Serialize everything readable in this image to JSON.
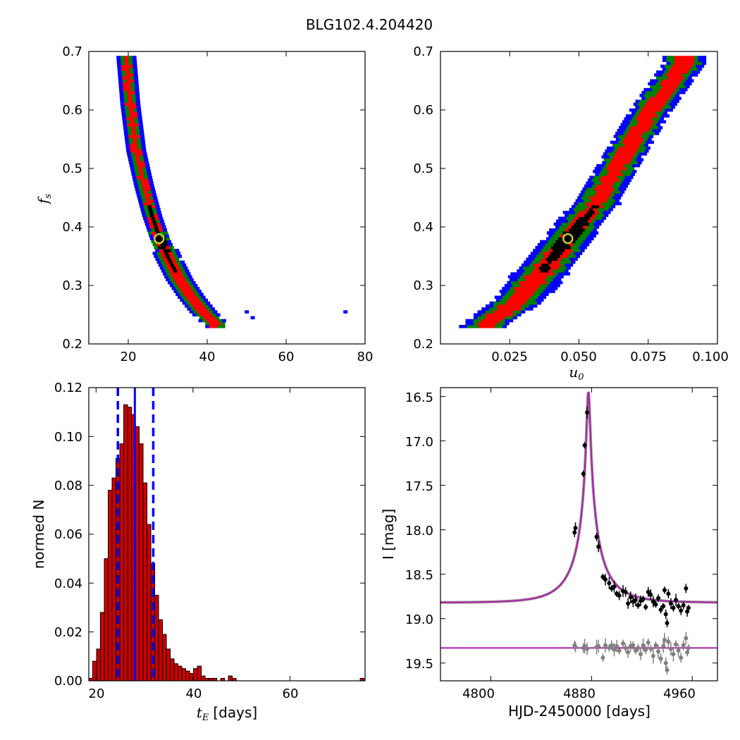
{
  "figure_title": "BLG102.4.204420",
  "colors": {
    "blue": "#0000ff",
    "green": "#008000",
    "red": "#ff0000",
    "black": "#000000",
    "marker": "#c8c832",
    "bar_fill": "#cc0000",
    "model": "#aa22aa",
    "resid": "#808080"
  },
  "chart_data": [
    {
      "id": "fs_vs_tE",
      "type": "heatmap",
      "title": "",
      "xlabel": "",
      "ylabel_main": "f",
      "ylabel_sub": "s",
      "xlim": [
        10,
        80
      ],
      "ylim": [
        0.2,
        0.7
      ],
      "xticks": [
        "20",
        "40",
        "60",
        "80"
      ],
      "yticks": [
        "0.2",
        "0.3",
        "0.4",
        "0.5",
        "0.6",
        "0.7"
      ],
      "levels": [
        "blue",
        "green",
        "red",
        "black"
      ],
      "ridge": {
        "x": [
          19.5,
          20.5,
          22,
          24,
          26,
          28,
          30,
          33,
          36,
          39,
          42
        ],
        "y": [
          0.69,
          0.61,
          0.53,
          0.47,
          0.42,
          0.38,
          0.35,
          0.31,
          0.28,
          0.255,
          0.235
        ]
      },
      "outliers": [
        {
          "x": 50,
          "y": 0.255
        },
        {
          "x": 51.5,
          "y": 0.245
        },
        {
          "x": 75,
          "y": 0.255
        }
      ],
      "best_fit": {
        "x": 27.8,
        "y": 0.38
      }
    },
    {
      "id": "fs_vs_u0",
      "type": "heatmap",
      "title": "",
      "xlabel_main": "u",
      "xlabel_sub": "0",
      "ylabel": "",
      "xlim": [
        0.0,
        0.1
      ],
      "ylim": [
        0.2,
        0.7
      ],
      "xticks": [
        "0.025",
        "0.050",
        "0.075",
        "0.100"
      ],
      "yticks": [
        "0.2",
        "0.3",
        "0.4",
        "0.5",
        "0.6",
        "0.7"
      ],
      "levels": [
        "blue",
        "green",
        "red",
        "black"
      ],
      "ridge": {
        "x": [
          0.016,
          0.027,
          0.036,
          0.046,
          0.056,
          0.066,
          0.076,
          0.088
        ],
        "y": [
          0.232,
          0.27,
          0.32,
          0.38,
          0.44,
          0.52,
          0.6,
          0.68
        ]
      },
      "best_fit": {
        "x": 0.046,
        "y": 0.38
      }
    },
    {
      "id": "tE_histogram",
      "type": "bar",
      "title": "",
      "xlabel_main": "t",
      "xlabel_sub": "E",
      "xlabel_unit": "[days]",
      "ylabel": "normed N",
      "xlim": [
        18.5,
        75.5
      ],
      "ylim": [
        0.0,
        0.12
      ],
      "xticks": [
        "20",
        "40",
        "60"
      ],
      "yticks": [
        "0.00",
        "0.02",
        "0.04",
        "0.06",
        "0.08",
        "0.10",
        "0.12"
      ],
      "bin_start": 18.5,
      "bin_width": 0.8,
      "values": [
        0.001,
        0.008,
        0.013,
        0.028,
        0.05,
        0.078,
        0.083,
        0.091,
        0.097,
        0.113,
        0.112,
        0.109,
        0.104,
        0.097,
        0.081,
        0.064,
        0.048,
        0.035,
        0.025,
        0.019,
        0.013,
        0.009,
        0.007,
        0.006,
        0.005,
        0.004,
        0.003,
        0.005,
        0.006,
        0.002,
        0.001,
        0.001,
        0.001,
        0.0,
        0.001,
        0.0,
        0.002,
        0.001,
        0.0,
        0.0,
        0.0,
        0.0,
        0.0,
        0.0,
        0.0,
        0.0,
        0.0,
        0.0,
        0.0,
        0.0,
        0.0,
        0.0,
        0.0,
        0.0,
        0.0,
        0.0,
        0.0,
        0.0,
        0.0,
        0.0,
        0.0,
        0.0,
        0.0,
        0.0,
        0.0,
        0.0,
        0.0,
        0.0,
        0.0,
        0.0,
        0.001
      ],
      "median_line": 28.0,
      "interval_lines": [
        24.5,
        31.8
      ]
    },
    {
      "id": "light_curve",
      "type": "scatter",
      "title": "",
      "xlabel": "HJD-2450000 [days]",
      "ylabel": "I [mag]",
      "xlim": [
        4760,
        4980
      ],
      "ylim": [
        19.7,
        16.4
      ],
      "xticks": [
        "4800",
        "4880",
        "4960"
      ],
      "yticks": [
        "16.5",
        "17.0",
        "17.5",
        "18.0",
        "18.5",
        "19.0",
        "19.5"
      ],
      "model": {
        "t0": 4877.5,
        "u0": 0.046,
        "tE": 27.8,
        "fs": 0.38,
        "baseline": 18.82
      },
      "residual_baseline": 19.33,
      "data_points": [
        {
          "x": 4873.5,
          "y": 17.37
        },
        {
          "x": 4874.5,
          "y": 17.05
        },
        {
          "x": 4876.5,
          "y": 16.68
        },
        {
          "x": 4866.5,
          "y": 18.03
        },
        {
          "x": 4867.2,
          "y": 17.98
        },
        {
          "x": 4884.0,
          "y": 18.08
        },
        {
          "x": 4885.5,
          "y": 18.19
        },
        {
          "x": 4889.0,
          "y": 18.53
        },
        {
          "x": 4891.0,
          "y": 18.56
        },
        {
          "x": 4894.0,
          "y": 18.6
        },
        {
          "x": 4896.0,
          "y": 18.66
        },
        {
          "x": 4898.0,
          "y": 18.64
        },
        {
          "x": 4900.0,
          "y": 18.72
        },
        {
          "x": 4902.0,
          "y": 18.74
        },
        {
          "x": 4905.0,
          "y": 18.69
        },
        {
          "x": 4907.0,
          "y": 18.7
        },
        {
          "x": 4909.0,
          "y": 18.83
        },
        {
          "x": 4911.0,
          "y": 18.76
        },
        {
          "x": 4913.0,
          "y": 18.81
        },
        {
          "x": 4915.0,
          "y": 18.79
        },
        {
          "x": 4917.0,
          "y": 18.85
        },
        {
          "x": 4919.0,
          "y": 18.8
        },
        {
          "x": 4921.0,
          "y": 18.78
        },
        {
          "x": 4923.0,
          "y": 18.87
        },
        {
          "x": 4925.0,
          "y": 18.7
        },
        {
          "x": 4927.0,
          "y": 18.73
        },
        {
          "x": 4929.0,
          "y": 18.81
        },
        {
          "x": 4931.0,
          "y": 18.84
        },
        {
          "x": 4933.0,
          "y": 18.77
        },
        {
          "x": 4935.0,
          "y": 18.9
        },
        {
          "x": 4937.0,
          "y": 18.86
        },
        {
          "x": 4938.0,
          "y": 18.68
        },
        {
          "x": 4939.0,
          "y": 18.95
        },
        {
          "x": 4940.0,
          "y": 19.05
        },
        {
          "x": 4941.0,
          "y": 18.72
        },
        {
          "x": 4943.0,
          "y": 18.83
        },
        {
          "x": 4945.0,
          "y": 18.88
        },
        {
          "x": 4947.0,
          "y": 18.79
        },
        {
          "x": 4949.0,
          "y": 18.86
        },
        {
          "x": 4951.0,
          "y": 18.91
        },
        {
          "x": 4953.0,
          "y": 18.85
        },
        {
          "x": 4955.0,
          "y": 18.66
        },
        {
          "x": 4956.0,
          "y": 18.92
        },
        {
          "x": 4957.0,
          "y": 18.88
        }
      ],
      "residual_points": [
        {
          "x": 4866.5,
          "y": 19.3
        },
        {
          "x": 4867.2,
          "y": 19.32
        },
        {
          "x": 4873.5,
          "y": 19.33
        },
        {
          "x": 4874.5,
          "y": 19.31
        },
        {
          "x": 4876.5,
          "y": 19.34
        },
        {
          "x": 4884.0,
          "y": 19.32
        },
        {
          "x": 4885.5,
          "y": 19.31
        },
        {
          "x": 4889.0,
          "y": 19.44
        },
        {
          "x": 4891.0,
          "y": 19.3
        },
        {
          "x": 4894.0,
          "y": 19.33
        },
        {
          "x": 4896.0,
          "y": 19.3
        },
        {
          "x": 4898.0,
          "y": 19.35
        },
        {
          "x": 4900.0,
          "y": 19.31
        },
        {
          "x": 4902.0,
          "y": 19.36
        },
        {
          "x": 4905.0,
          "y": 19.28
        },
        {
          "x": 4907.0,
          "y": 19.33
        },
        {
          "x": 4909.0,
          "y": 19.38
        },
        {
          "x": 4911.0,
          "y": 19.31
        },
        {
          "x": 4913.0,
          "y": 19.3
        },
        {
          "x": 4915.0,
          "y": 19.36
        },
        {
          "x": 4917.0,
          "y": 19.33
        },
        {
          "x": 4919.0,
          "y": 19.4
        },
        {
          "x": 4921.0,
          "y": 19.3
        },
        {
          "x": 4923.0,
          "y": 19.35
        },
        {
          "x": 4925.0,
          "y": 19.27
        },
        {
          "x": 4927.0,
          "y": 19.34
        },
        {
          "x": 4929.0,
          "y": 19.42
        },
        {
          "x": 4931.0,
          "y": 19.3
        },
        {
          "x": 4933.0,
          "y": 19.37
        },
        {
          "x": 4935.0,
          "y": 19.45
        },
        {
          "x": 4937.0,
          "y": 19.31
        },
        {
          "x": 4938.0,
          "y": 19.24
        },
        {
          "x": 4939.0,
          "y": 19.5
        },
        {
          "x": 4940.0,
          "y": 19.58
        },
        {
          "x": 4941.0,
          "y": 19.26
        },
        {
          "x": 4943.0,
          "y": 19.34
        },
        {
          "x": 4945.0,
          "y": 19.4
        },
        {
          "x": 4947.0,
          "y": 19.29
        },
        {
          "x": 4949.0,
          "y": 19.36
        },
        {
          "x": 4951.0,
          "y": 19.44
        },
        {
          "x": 4953.0,
          "y": 19.3
        },
        {
          "x": 4955.0,
          "y": 19.22
        },
        {
          "x": 4956.0,
          "y": 19.38
        },
        {
          "x": 4957.0,
          "y": 19.33
        }
      ]
    }
  ]
}
